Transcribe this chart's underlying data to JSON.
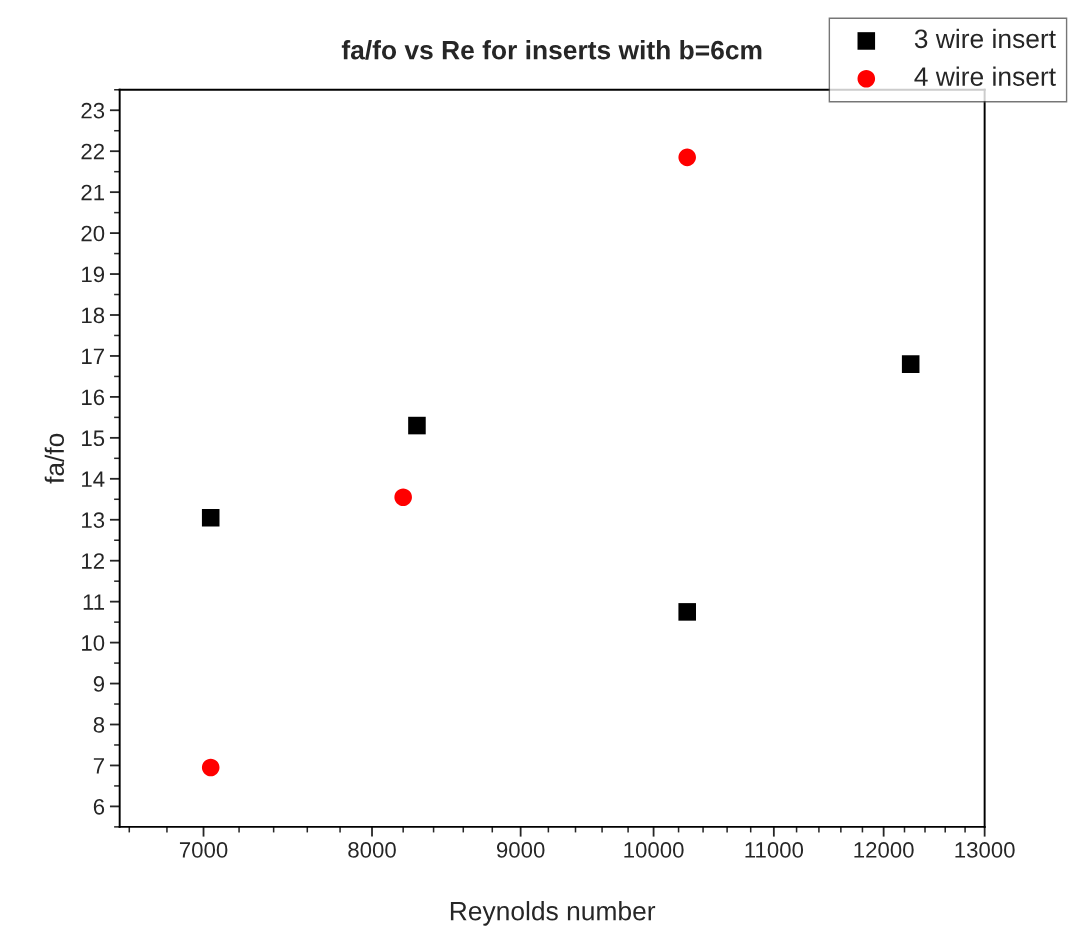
{
  "chart_data": {
    "type": "scatter",
    "title": "fa/fo vs Re for inserts with b=6cm",
    "xlabel": "Reynolds number",
    "ylabel": "fa/fo",
    "log": "x",
    "xlim": [
      6550,
      13000
    ],
    "xticks": [
      7000,
      8000,
      9000,
      10000,
      11000,
      12000,
      13000
    ],
    "ylim": [
      5.5,
      23.5
    ],
    "yticks": [
      6,
      7,
      8,
      9,
      10,
      11,
      12,
      13,
      14,
      15,
      16,
      17,
      18,
      19,
      20,
      21,
      22,
      23
    ],
    "grid": false,
    "legend": "top right",
    "series": [
      {
        "name": "3 wire insert",
        "color": "#000000",
        "marker": "square",
        "x": [
          7040,
          8290,
          10270,
          12260
        ],
        "values": [
          13.05,
          15.3,
          10.75,
          16.8
        ]
      },
      {
        "name": "4 wire insert",
        "color": "#ff0000",
        "marker": "circle",
        "x": [
          7040,
          8200,
          10270
        ],
        "values": [
          6.95,
          13.55,
          21.85
        ]
      }
    ]
  }
}
